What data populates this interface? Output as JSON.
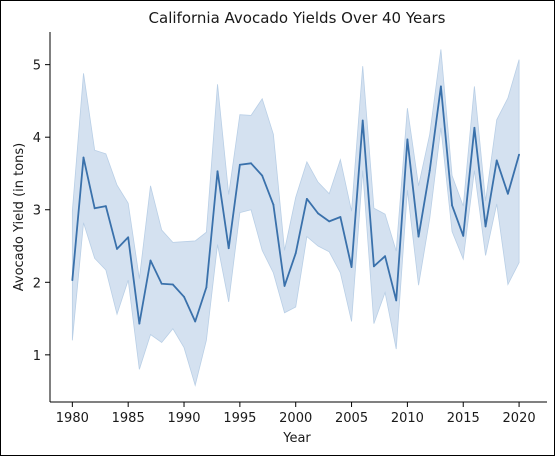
{
  "chart_data": {
    "type": "line",
    "title": "California Avocado Yields Over 40 Years",
    "xlabel": "Year",
    "ylabel": "Avocado Yield (in tons)",
    "xlim": [
      1978,
      2022.5
    ],
    "ylim": [
      0.35,
      5.45
    ],
    "xticks": [
      1980,
      1985,
      1990,
      1995,
      2000,
      2005,
      2010,
      2015,
      2020
    ],
    "yticks": [
      1,
      2,
      3,
      4,
      5
    ],
    "grid": false,
    "legend": "none",
    "colors": {
      "line": "#3a71ab",
      "band": "#b9cfe6",
      "axis": "#000000"
    },
    "x": [
      1980,
      1981,
      1982,
      1983,
      1984,
      1985,
      1986,
      1987,
      1988,
      1989,
      1990,
      1991,
      1992,
      1993,
      1994,
      1995,
      1996,
      1997,
      1998,
      1999,
      2000,
      2001,
      2002,
      2003,
      2004,
      2005,
      2006,
      2007,
      2008,
      2009,
      2010,
      2011,
      2012,
      2013,
      2014,
      2015,
      2016,
      2017,
      2018,
      2019,
      2020
    ],
    "series": [
      {
        "values": [
          2.03,
          3.72,
          3.02,
          3.05,
          2.46,
          2.62,
          1.43,
          2.3,
          1.98,
          1.97,
          1.8,
          1.46,
          1.93,
          3.53,
          2.47,
          3.62,
          3.64,
          3.47,
          3.07,
          1.95,
          2.4,
          3.15,
          2.95,
          2.84,
          2.9,
          2.21,
          4.23,
          2.22,
          2.36,
          1.75,
          3.97,
          2.63,
          3.54,
          4.7,
          3.06,
          2.64,
          4.13,
          2.77,
          3.68,
          3.22,
          3.76
        ],
        "ci_lower": [
          1.2,
          2.82,
          2.33,
          2.17,
          1.56,
          2.03,
          0.8,
          1.28,
          1.17,
          1.36,
          1.1,
          0.58,
          1.2,
          2.52,
          1.73,
          2.96,
          3.0,
          2.44,
          2.13,
          1.58,
          1.66,
          2.63,
          2.5,
          2.42,
          2.13,
          1.46,
          3.54,
          1.43,
          1.86,
          1.08,
          3.27,
          1.96,
          2.88,
          4.13,
          2.7,
          2.32,
          3.54,
          2.37,
          3.08,
          1.97,
          2.27
        ],
        "ci_upper": [
          2.98,
          4.88,
          3.82,
          3.77,
          3.34,
          3.09,
          2.05,
          3.33,
          2.72,
          2.55,
          2.56,
          2.57,
          2.69,
          4.73,
          3.21,
          4.31,
          4.3,
          4.53,
          4.04,
          2.44,
          3.17,
          3.66,
          3.38,
          3.22,
          3.69,
          2.98,
          4.98,
          3.02,
          2.94,
          2.43,
          4.4,
          3.33,
          4.04,
          5.21,
          3.47,
          3.05,
          4.7,
          3.12,
          4.24,
          4.54,
          5.07
        ]
      }
    ]
  }
}
